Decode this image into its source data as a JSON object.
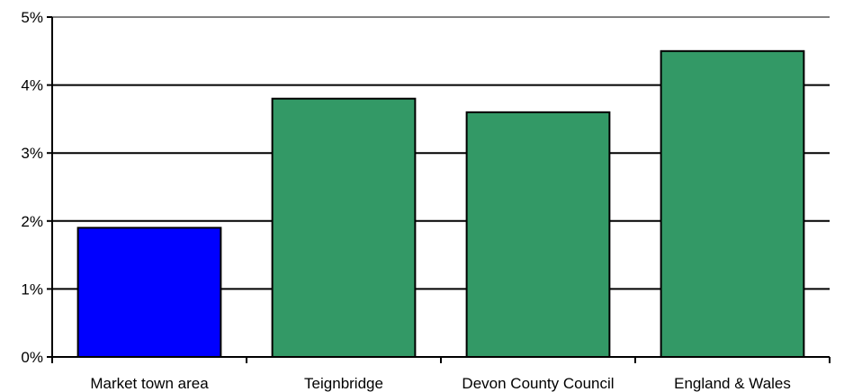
{
  "chart_data": {
    "type": "bar",
    "categories": [
      "Market town area",
      "Teignbridge",
      "Devon County Council",
      "England & Wales"
    ],
    "values": [
      1.9,
      3.8,
      3.6,
      4.5
    ],
    "bar_colors": [
      "#0000ff",
      "#339966",
      "#339966",
      "#339966"
    ],
    "ylim": [
      0,
      5
    ],
    "yticks": [
      0,
      1,
      2,
      3,
      4,
      5
    ],
    "ytick_labels": [
      "0%",
      "1%",
      "2%",
      "3%",
      "4%",
      "5%"
    ],
    "grid": true,
    "title": "",
    "xlabel": "",
    "ylabel": ""
  }
}
